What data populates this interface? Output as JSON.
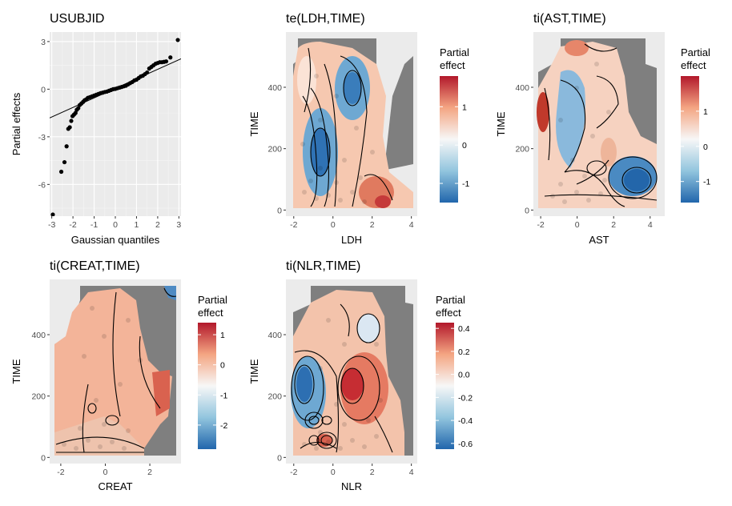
{
  "figure": {
    "background": "#ffffff",
    "panel_background": "#ebebeb",
    "grid_color": "#ffffff",
    "na_color": "#7f7f7f"
  },
  "chart_data": [
    {
      "type": "scatter",
      "subtype": "qq-plot",
      "title": "USUBJID",
      "xlabel": "Gaussian quantiles",
      "ylabel": "Partial effects",
      "xlim": [
        -3.1,
        3.1
      ],
      "ylim": [
        -8.0,
        3.6
      ],
      "x_ticks": [
        "-3",
        "-2",
        "-1",
        "0",
        "1",
        "2",
        "3"
      ],
      "y_ticks": [
        "3",
        "0",
        "-3",
        "-6"
      ],
      "reference_line": {
        "intercept": 0.05,
        "slope": 0.6
      },
      "series": [
        {
          "points_x": [
            -2.95,
            -2.55,
            -2.4,
            -2.3,
            -2.22,
            -2.15,
            -2.08,
            -2.02,
            -1.95,
            -1.88,
            -1.82,
            -1.75,
            -1.68,
            -1.6,
            -1.52,
            -1.45,
            -1.38,
            -1.3,
            -1.2,
            -1.1,
            -1.0,
            -0.9,
            -0.8,
            -0.7,
            -0.6,
            -0.5,
            -0.4,
            -0.3,
            -0.2,
            -0.1,
            0.0,
            0.1,
            0.2,
            0.3,
            0.4,
            0.5,
            0.6,
            0.7,
            0.8,
            0.9,
            1.0,
            1.1,
            1.2,
            1.3,
            1.4,
            1.5,
            1.6,
            1.7,
            1.8,
            1.9,
            2.0,
            2.1,
            2.2,
            2.3,
            2.4,
            2.6,
            2.95
          ],
          "points_y": [
            -7.9,
            -5.2,
            -4.6,
            -3.6,
            -2.5,
            -2.4,
            -2.0,
            -1.7,
            -1.6,
            -1.5,
            -1.3,
            -1.2,
            -1.0,
            -0.9,
            -0.8,
            -0.7,
            -0.65,
            -0.55,
            -0.5,
            -0.45,
            -0.4,
            -0.35,
            -0.3,
            -0.25,
            -0.22,
            -0.18,
            -0.15,
            -0.1,
            -0.05,
            0.0,
            0.02,
            0.06,
            0.1,
            0.14,
            0.18,
            0.22,
            0.3,
            0.38,
            0.45,
            0.55,
            0.6,
            0.7,
            0.8,
            0.85,
            0.95,
            1.05,
            1.3,
            1.4,
            1.5,
            1.6,
            1.65,
            1.7,
            1.7,
            1.72,
            1.75,
            2.0,
            3.1
          ]
        }
      ]
    },
    {
      "type": "heatmap",
      "title": "te(LDH,TIME)",
      "xlabel": "LDH",
      "ylabel": "TIME",
      "xlim": [
        -2.4,
        4.3
      ],
      "ylim": [
        -20,
        580
      ],
      "x_ticks": [
        "-2",
        "0",
        "2",
        "4"
      ],
      "y_ticks": [
        "0",
        "200",
        "400"
      ],
      "legend": {
        "title": "Partial effect",
        "breaks": [
          "1",
          "0",
          "-1"
        ],
        "range": [
          -1.5,
          1.8
        ],
        "position": "right"
      }
    },
    {
      "type": "heatmap",
      "title": "ti(AST,TIME)",
      "xlabel": "AST",
      "ylabel": "TIME",
      "xlim": [
        -2.4,
        4.8
      ],
      "ylim": [
        -20,
        580
      ],
      "x_ticks": [
        "-2",
        "0",
        "2",
        "4"
      ],
      "y_ticks": [
        "0",
        "200",
        "400"
      ],
      "legend": {
        "title": "Partial effect",
        "breaks": [
          "1",
          "0",
          "-1"
        ],
        "range": [
          -1.6,
          2.0
        ],
        "position": "right"
      }
    },
    {
      "type": "heatmap",
      "title": "ti(CREAT,TIME)",
      "xlabel": "CREAT",
      "ylabel": "TIME",
      "xlim": [
        -2.5,
        3.4
      ],
      "ylim": [
        -20,
        580
      ],
      "x_ticks": [
        "-2",
        "0",
        "2"
      ],
      "y_ticks": [
        "0",
        "200",
        "400"
      ],
      "legend": {
        "title": "Partial effect",
        "breaks": [
          "1",
          "0",
          "-1",
          "-2"
        ],
        "range": [
          -2.8,
          1.4
        ],
        "position": "right"
      }
    },
    {
      "type": "heatmap",
      "title": "ti(NLR,TIME)",
      "xlabel": "NLR",
      "ylabel": "TIME",
      "xlim": [
        -2.4,
        4.3
      ],
      "ylim": [
        -20,
        580
      ],
      "x_ticks": [
        "-2",
        "0",
        "2",
        "4"
      ],
      "y_ticks": [
        "0",
        "200",
        "400"
      ],
      "legend": {
        "title": "Partial effect",
        "breaks": [
          "0.4",
          "0.2",
          "0.0",
          "-0.2",
          "-0.4",
          "-0.6"
        ],
        "range": [
          -0.65,
          0.45
        ],
        "position": "right"
      }
    }
  ]
}
